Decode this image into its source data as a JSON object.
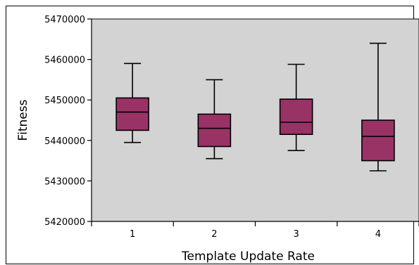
{
  "chart_data": {
    "type": "box",
    "xlabel": "Template Update Rate",
    "ylabel": "Fitness",
    "ylim": [
      5420000,
      5470000
    ],
    "yticks": [
      5420000,
      5430000,
      5440000,
      5450000,
      5460000,
      5470000
    ],
    "grid": false,
    "categories": [
      "1",
      "2",
      "3",
      "4"
    ],
    "boxes": [
      {
        "category": "1",
        "min": 5439500,
        "q1": 5442500,
        "median": 5447000,
        "q3": 5450500,
        "max": 5459000
      },
      {
        "category": "2",
        "min": 5435500,
        "q1": 5438500,
        "median": 5443000,
        "q3": 5446500,
        "max": 5455000
      },
      {
        "category": "3",
        "min": 5437500,
        "q1": 5441500,
        "median": 5444500,
        "q3": 5450200,
        "max": 5458800
      },
      {
        "category": "4",
        "min": 5432500,
        "q1": 5435000,
        "median": 5441000,
        "q3": 5445000,
        "max": 5464000
      }
    ],
    "colors": {
      "plot_background": "#d3d3d3",
      "box_fill": "#993366",
      "box_stroke": "#000000"
    }
  }
}
